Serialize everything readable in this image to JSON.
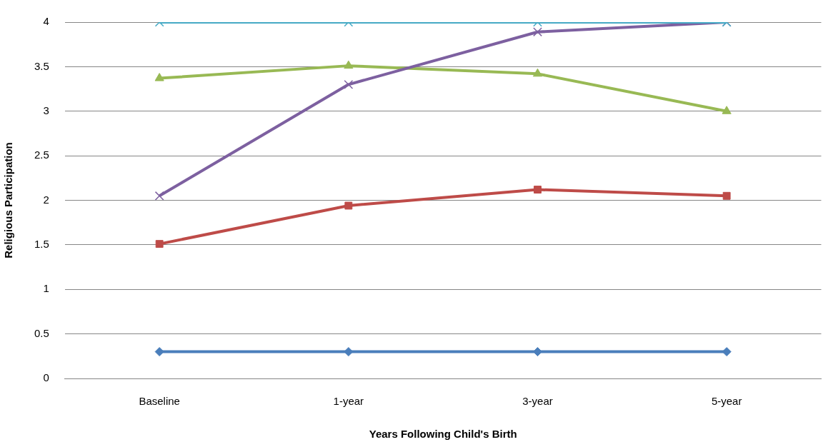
{
  "chart_data": {
    "type": "line",
    "xlabel": "Years Following Child's Birth",
    "ylabel": "Religious Participation",
    "categories": [
      "Baseline",
      "1-year",
      "3-year",
      "5-year"
    ],
    "series": [
      {
        "color": "#4a7ebb",
        "marker": "diamond",
        "values": [
          0.3,
          0.3,
          0.3,
          0.3
        ]
      },
      {
        "color": "#be4b48",
        "marker": "square",
        "values": [
          1.51,
          1.94,
          2.12,
          2.05
        ]
      },
      {
        "color": "#98b954",
        "marker": "triangle",
        "values": [
          3.37,
          3.51,
          3.42,
          3.0
        ]
      },
      {
        "color": "#7d60a0",
        "marker": "cross",
        "values": [
          2.05,
          3.3,
          3.89,
          4.0
        ]
      },
      {
        "color": "#46aac5",
        "marker": "cross",
        "values": [
          4.0,
          4.0,
          4.0,
          4.0
        ]
      }
    ],
    "ylim": [
      0,
      4
    ],
    "yticks": [
      0,
      0.5,
      1,
      1.5,
      2,
      2.5,
      3,
      3.5,
      4
    ],
    "grid": "y",
    "legend": false
  }
}
